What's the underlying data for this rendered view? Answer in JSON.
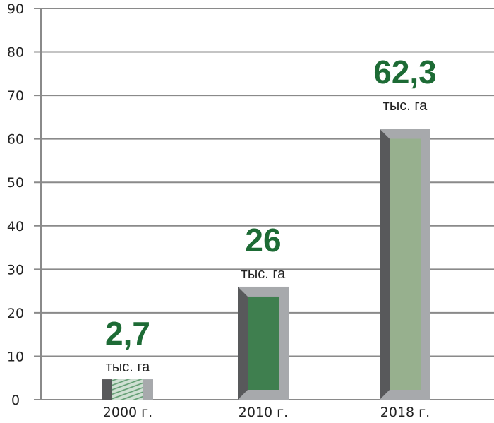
{
  "chart_data": {
    "type": "bar",
    "title": "",
    "xlabel": "",
    "ylabel": "",
    "categories": [
      "2000 г.",
      "2010 г.",
      "2018 г."
    ],
    "values": [
      2.7,
      26,
      62.3
    ],
    "value_labels": [
      "2,7",
      "26",
      "62,3"
    ],
    "unit_label": "тыс. га",
    "ylim": [
      0,
      90
    ],
    "yticks": [
      0,
      10,
      20,
      30,
      40,
      50,
      60,
      70,
      80,
      90
    ],
    "grid": true,
    "bar_colors": [
      "#8fb29a",
      "#3f7f4f",
      "#97b08e"
    ],
    "value_color": "#1d6b35"
  }
}
